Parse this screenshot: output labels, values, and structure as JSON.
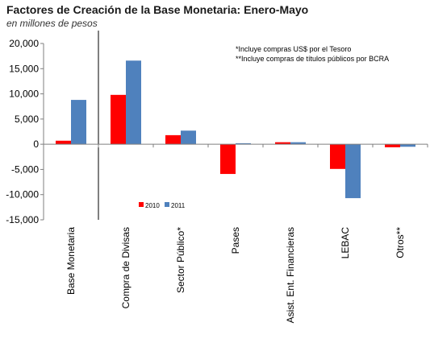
{
  "chart_data": {
    "type": "bar",
    "title": "Factores de Creación de la Base Monetaria: Enero-Mayo",
    "subtitle": "en millones de pesos",
    "categories": [
      "Base Monetaria",
      "Compra de Divisas",
      "Sector Público*",
      "Pases",
      "Asist. Ent. Financieras",
      "LEBAC",
      "Otros**"
    ],
    "series": [
      {
        "name": "2010",
        "color": "#ff0000",
        "values": [
          700,
          9800,
          1800,
          -5900,
          400,
          -4900,
          -600
        ]
      },
      {
        "name": "2011",
        "color": "#4f81bd",
        "values": [
          8800,
          16600,
          2700,
          200,
          400,
          -10700,
          -500
        ]
      }
    ],
    "ylim": [
      -15000,
      20000
    ],
    "yticks": [
      20000,
      15000,
      10000,
      5000,
      0,
      -5000,
      -10000,
      -15000
    ],
    "ytick_labels": [
      "20,000",
      "15,000",
      "10,000",
      "5,000",
      "0",
      "-5,000",
      "-10,000",
      "-15,000"
    ],
    "notes": [
      "*Incluye compras US$ por el Tesoro",
      "**Incluye compras de títulos públicos por BCRA"
    ],
    "grid": false,
    "legend_position": "bottom-left"
  }
}
